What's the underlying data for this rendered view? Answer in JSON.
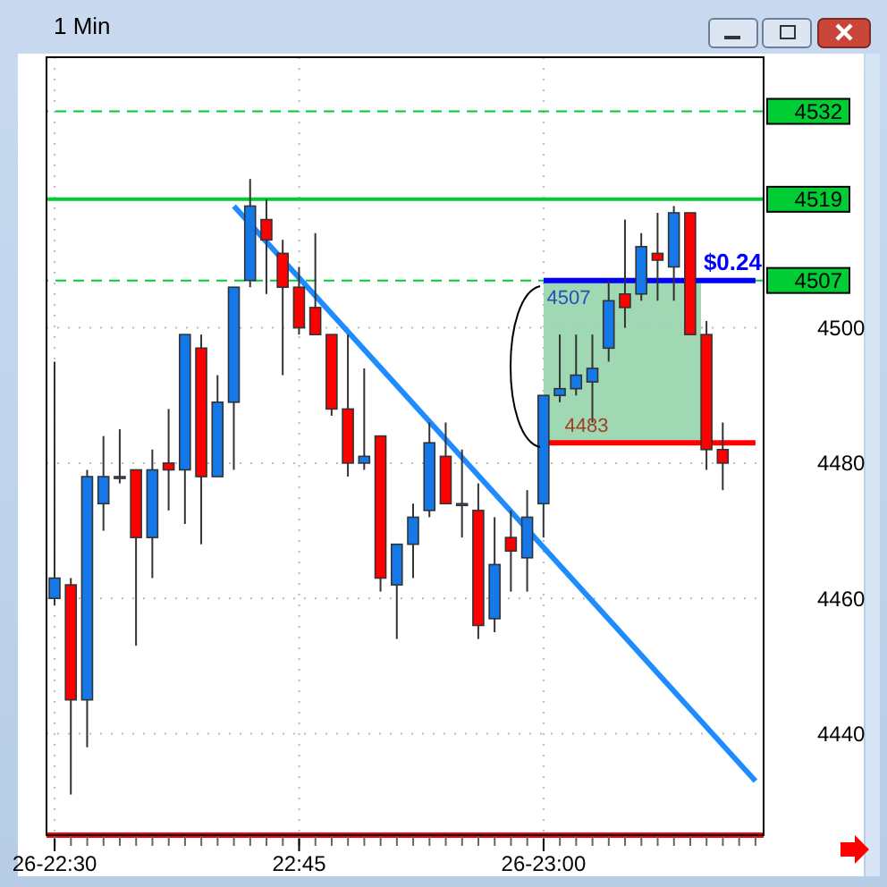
{
  "chart_data": {
    "type": "candlestick",
    "title": "1 Min",
    "categories": [
      "26-22:30",
      null,
      null,
      null,
      null,
      null,
      null,
      null,
      null,
      null,
      null,
      null,
      null,
      null,
      null,
      "22:45",
      null,
      null,
      null,
      null,
      null,
      null,
      null,
      null,
      null,
      null,
      null,
      null,
      null,
      null,
      "26-23:00",
      null,
      null,
      null,
      null,
      null,
      null,
      null,
      null,
      null,
      null,
      null,
      null,
      null
    ],
    "ohlc": [
      [
        4460,
        4495,
        4459,
        4463
      ],
      [
        4462,
        4463,
        4431,
        4445
      ],
      [
        4445,
        4479,
        4438,
        4478
      ],
      [
        4474,
        4484,
        4470,
        4478
      ],
      [
        4478,
        4485,
        4477,
        4478
      ],
      [
        4479,
        4479,
        4453,
        4469
      ],
      [
        4469,
        4482,
        4463,
        4479
      ],
      [
        4480,
        4488,
        4473,
        4479
      ],
      [
        4479,
        4499,
        4471,
        4499
      ],
      [
        4497,
        4499,
        4468,
        4478
      ],
      [
        4478,
        4493,
        4478,
        4489
      ],
      [
        4489,
        4506,
        4479,
        4506
      ],
      [
        4507,
        4522,
        4506,
        4518
      ],
      [
        4516,
        4519,
        4505,
        4513
      ],
      [
        4511,
        4513,
        4493,
        4506
      ],
      [
        4506,
        4509,
        4499,
        4500
      ],
      [
        4503,
        4514,
        4499,
        4499
      ],
      [
        4499,
        4499,
        4487,
        4488
      ],
      [
        4488,
        4499,
        4478,
        4480
      ],
      [
        4480,
        4494,
        4479,
        4481
      ],
      [
        4484,
        4484,
        4461,
        4463
      ],
      [
        4462,
        4468,
        4454,
        4468
      ],
      [
        4468,
        4474,
        4463,
        4472
      ],
      [
        4473,
        4486,
        4472,
        4483
      ],
      [
        4481,
        4486,
        4474,
        4474
      ],
      [
        4474,
        4482,
        4469,
        4474
      ],
      [
        4473,
        4477,
        4454,
        4456
      ],
      [
        4457,
        4472,
        4455,
        4465
      ],
      [
        4469,
        4473,
        4461,
        4467
      ],
      [
        4466,
        4476,
        4461,
        4472
      ],
      [
        4474,
        4490,
        4469,
        4490
      ],
      [
        4490,
        4499,
        4489,
        4491
      ],
      [
        4491,
        4499,
        4490,
        4493
      ],
      [
        4492,
        4499,
        4486,
        4494
      ],
      [
        4497,
        4507,
        4495,
        4504
      ],
      [
        4505,
        4516,
        4500,
        4503
      ],
      [
        4505,
        4514,
        4504,
        4512
      ],
      [
        4511,
        4517,
        4504,
        4510
      ],
      [
        4509,
        4518,
        4504,
        4517
      ],
      [
        4517,
        4517,
        4499,
        4499
      ],
      [
        4499,
        4501,
        4479,
        4482
      ],
      [
        4482,
        4486,
        4476,
        4480
      ],
      null,
      null
    ],
    "series": [
      {
        "type": "line",
        "color": "#1e8cff",
        "values": [
          null,
          null,
          null,
          null,
          null,
          null,
          null,
          null,
          null,
          null,
          null,
          4518,
          null,
          null,
          null,
          null,
          null,
          null,
          null,
          null,
          null,
          null,
          null,
          null,
          null,
          null,
          null,
          null,
          null,
          null,
          null,
          null,
          null,
          null,
          null,
          null,
          null,
          null,
          null,
          null,
          null,
          null,
          null,
          4433
        ]
      },
      {
        "type": "line",
        "color": "#0000ff",
        "values": [
          null,
          null,
          null,
          null,
          null,
          null,
          null,
          null,
          null,
          null,
          null,
          null,
          null,
          null,
          null,
          null,
          null,
          null,
          null,
          null,
          null,
          null,
          null,
          null,
          null,
          null,
          null,
          null,
          null,
          null,
          4507,
          null,
          null,
          null,
          null,
          null,
          null,
          null,
          null,
          null,
          null,
          null,
          null,
          4507
        ]
      },
      {
        "type": "line",
        "color": "#ff0000",
        "values": [
          null,
          null,
          null,
          null,
          null,
          null,
          null,
          null,
          null,
          null,
          null,
          null,
          null,
          null,
          null,
          null,
          null,
          null,
          null,
          null,
          null,
          null,
          null,
          null,
          null,
          null,
          null,
          null,
          null,
          null,
          4483,
          null,
          null,
          null,
          null,
          null,
          null,
          null,
          null,
          null,
          null,
          null,
          null,
          4483
        ]
      }
    ],
    "ref_lines": [
      {
        "axis": "y",
        "value": 4532,
        "label": "4532",
        "color": "#00cc33",
        "line_style": "dashed"
      },
      {
        "axis": "y",
        "value": 4519,
        "label": "4519",
        "color": "#00cc33",
        "line_style": "solid"
      },
      {
        "axis": "y",
        "value": 4507,
        "label": "4507",
        "color": "#00cc33",
        "line_style": "dashed"
      }
    ],
    "bands": [
      {
        "axis": "y",
        "from": 4483,
        "to": 4507,
        "color": "#9fd8b3"
      }
    ],
    "annotations": [
      "$0.24",
      {
        "text": "4507",
        "y": 4507
      },
      {
        "text": "4483",
        "y": 4483
      }
    ],
    "ylim": [
      4425,
      4540
    ],
    "yticks": [
      4440,
      4460,
      4480,
      4500
    ],
    "grid": true
  }
}
